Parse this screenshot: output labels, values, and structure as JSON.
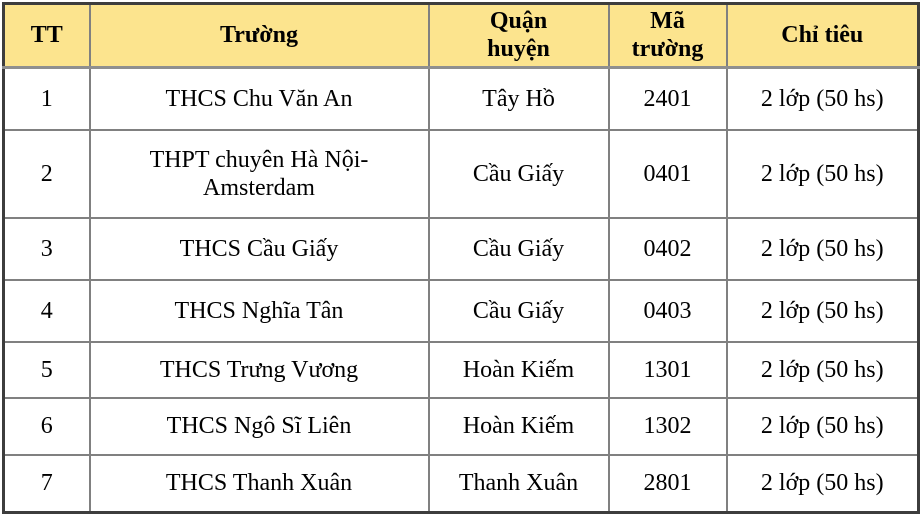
{
  "colors": {
    "header_background": "#fce48e",
    "inner_border": "#808080",
    "outer_border": "#3d3d3d",
    "text": "#000000"
  },
  "table": {
    "columns": [
      {
        "key": "tt",
        "label": "TT"
      },
      {
        "key": "truong",
        "label": "Trường"
      },
      {
        "key": "quan_huyen",
        "label": "Quận\nhuyện"
      },
      {
        "key": "ma_truong",
        "label": "Mã\ntrường"
      },
      {
        "key": "chi_tieu",
        "label": "Chỉ tiêu"
      }
    ],
    "rows": [
      {
        "tt": "1",
        "truong": "THCS Chu Văn An",
        "quan_huyen": "Tây Hồ",
        "ma_truong": "2401",
        "chi_tieu": "2 lớp (50 hs)"
      },
      {
        "tt": "2",
        "truong": "THPT chuyên Hà Nội-\nAmsterdam",
        "quan_huyen": "Cầu Giấy",
        "ma_truong": "0401",
        "chi_tieu": "2 lớp (50 hs)"
      },
      {
        "tt": "3",
        "truong": "THCS Cầu Giấy",
        "quan_huyen": "Cầu Giấy",
        "ma_truong": "0402",
        "chi_tieu": "2 lớp (50 hs)"
      },
      {
        "tt": "4",
        "truong": "THCS Nghĩa Tân",
        "quan_huyen": "Cầu Giấy",
        "ma_truong": "0403",
        "chi_tieu": "2 lớp (50 hs)"
      },
      {
        "tt": "5",
        "truong": "THCS Trưng Vương",
        "quan_huyen": "Hoàn Kiếm",
        "ma_truong": "1301",
        "chi_tieu": "2 lớp (50 hs)"
      },
      {
        "tt": "6",
        "truong": "THCS Ngô Sĩ Liên",
        "quan_huyen": "Hoàn Kiếm",
        "ma_truong": "1302",
        "chi_tieu": "2 lớp (50 hs)"
      },
      {
        "tt": "7",
        "truong": "THCS Thanh Xuân",
        "quan_huyen": "Thanh Xuân",
        "ma_truong": "2801",
        "chi_tieu": "2 lớp (50 hs)"
      }
    ]
  }
}
